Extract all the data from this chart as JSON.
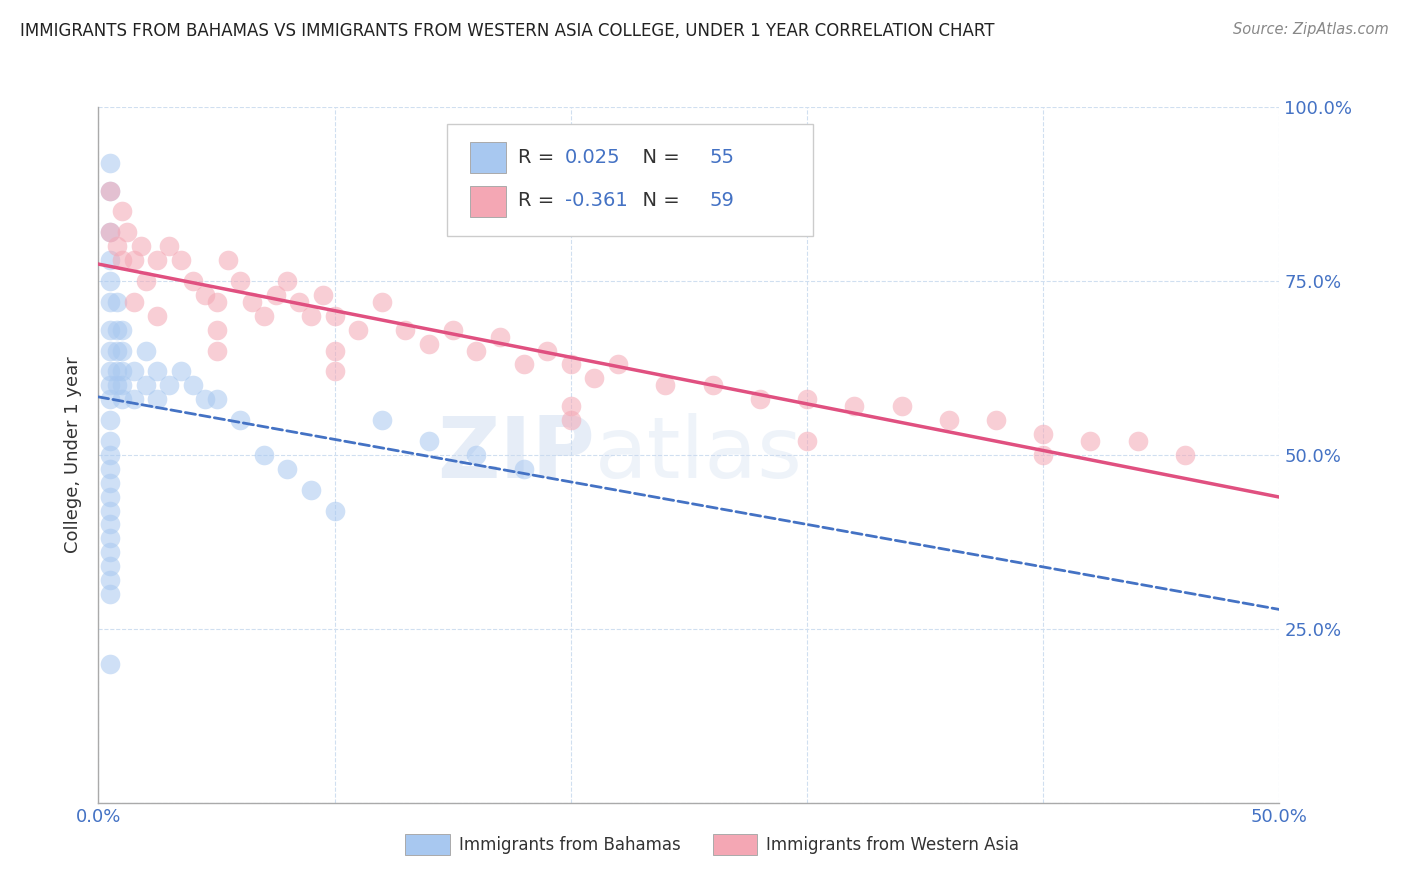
{
  "title": "IMMIGRANTS FROM BAHAMAS VS IMMIGRANTS FROM WESTERN ASIA COLLEGE, UNDER 1 YEAR CORRELATION CHART",
  "source": "Source: ZipAtlas.com",
  "ylabel": "College, Under 1 year",
  "xlim": [
    0.0,
    0.5
  ],
  "ylim": [
    0.0,
    1.0
  ],
  "r_bahamas": 0.025,
  "n_bahamas": 55,
  "r_western_asia": -0.361,
  "n_western_asia": 59,
  "scatter_bahamas_x": [
    0.005,
    0.005,
    0.005,
    0.005,
    0.005,
    0.005,
    0.005,
    0.005,
    0.005,
    0.005,
    0.005,
    0.005,
    0.005,
    0.005,
    0.005,
    0.005,
    0.005,
    0.005,
    0.005,
    0.005,
    0.008,
    0.008,
    0.008,
    0.008,
    0.008,
    0.01,
    0.01,
    0.01,
    0.01,
    0.01,
    0.015,
    0.015,
    0.02,
    0.02,
    0.025,
    0.025,
    0.03,
    0.035,
    0.04,
    0.045,
    0.05,
    0.06,
    0.07,
    0.08,
    0.09,
    0.1,
    0.12,
    0.14,
    0.16,
    0.18,
    0.005,
    0.005,
    0.005,
    0.005,
    0.005
  ],
  "scatter_bahamas_y": [
    0.92,
    0.88,
    0.82,
    0.78,
    0.75,
    0.72,
    0.68,
    0.65,
    0.62,
    0.6,
    0.58,
    0.55,
    0.52,
    0.5,
    0.48,
    0.46,
    0.44,
    0.42,
    0.4,
    0.38,
    0.72,
    0.68,
    0.65,
    0.62,
    0.6,
    0.68,
    0.65,
    0.62,
    0.6,
    0.58,
    0.62,
    0.58,
    0.65,
    0.6,
    0.62,
    0.58,
    0.6,
    0.62,
    0.6,
    0.58,
    0.58,
    0.55,
    0.5,
    0.48,
    0.45,
    0.42,
    0.55,
    0.52,
    0.5,
    0.48,
    0.36,
    0.34,
    0.32,
    0.3,
    0.2
  ],
  "scatter_western_asia_x": [
    0.005,
    0.005,
    0.008,
    0.01,
    0.01,
    0.012,
    0.015,
    0.018,
    0.02,
    0.025,
    0.03,
    0.035,
    0.04,
    0.045,
    0.05,
    0.055,
    0.06,
    0.065,
    0.07,
    0.075,
    0.08,
    0.085,
    0.09,
    0.095,
    0.1,
    0.11,
    0.12,
    0.13,
    0.14,
    0.15,
    0.16,
    0.17,
    0.18,
    0.19,
    0.2,
    0.21,
    0.22,
    0.24,
    0.26,
    0.28,
    0.3,
    0.32,
    0.34,
    0.36,
    0.38,
    0.4,
    0.42,
    0.44,
    0.46,
    0.015,
    0.025,
    0.05,
    0.1,
    0.2,
    0.3,
    0.4,
    0.05,
    0.1,
    0.2
  ],
  "scatter_western_asia_y": [
    0.88,
    0.82,
    0.8,
    0.85,
    0.78,
    0.82,
    0.78,
    0.8,
    0.75,
    0.78,
    0.8,
    0.78,
    0.75,
    0.73,
    0.72,
    0.78,
    0.75,
    0.72,
    0.7,
    0.73,
    0.75,
    0.72,
    0.7,
    0.73,
    0.7,
    0.68,
    0.72,
    0.68,
    0.66,
    0.68,
    0.65,
    0.67,
    0.63,
    0.65,
    0.63,
    0.61,
    0.63,
    0.6,
    0.6,
    0.58,
    0.58,
    0.57,
    0.57,
    0.55,
    0.55,
    0.53,
    0.52,
    0.52,
    0.5,
    0.72,
    0.7,
    0.65,
    0.62,
    0.55,
    0.52,
    0.5,
    0.68,
    0.65,
    0.57
  ],
  "color_bahamas": "#a8c8f0",
  "color_western_asia": "#f4a7b4",
  "line_color_bahamas": "#4472c4",
  "line_color_western_asia": "#e05080",
  "background_color": "#ffffff",
  "grid_color": "#d0dff0",
  "watermark_zip": "ZIP",
  "watermark_atlas": "atlas",
  "legend_color": "#4472c4"
}
